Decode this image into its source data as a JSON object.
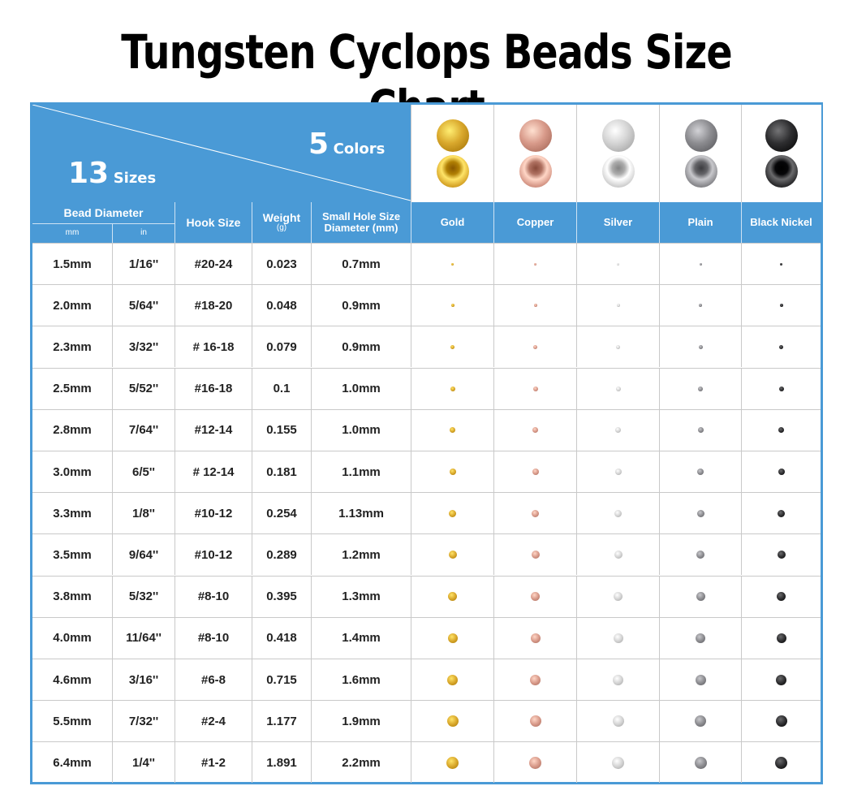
{
  "title": "Tungsten Cyclops Beads Size Chart",
  "corner": {
    "sizes_num": "13",
    "sizes_word": "Sizes",
    "colors_num": "5",
    "colors_word": "Colors"
  },
  "headers": {
    "bead_diameter": "Bead Diameter",
    "mm": "mm",
    "in": "in",
    "hook_size": "Hook Size",
    "weight": "Weight",
    "weight_unit": "(g)",
    "hole_line1": "Small Hole Size",
    "hole_line2": "Diameter (mm)"
  },
  "colors": [
    {
      "name": "Gold",
      "hex": "#d9a82c"
    },
    {
      "name": "Copper",
      "hex": "#d89a8a"
    },
    {
      "name": "Silver",
      "hex": "#d4d4d4"
    },
    {
      "name": "Plain",
      "hex": "#8c8c90"
    },
    {
      "name": "Black Nickel",
      "hex": "#2e2e30"
    }
  ],
  "rows": [
    {
      "mm": "1.5mm",
      "in": "1/16''",
      "hook": "#20-24",
      "weight": "0.023",
      "hole": "0.7mm"
    },
    {
      "mm": "2.0mm",
      "in": "5/64''",
      "hook": "#18-20",
      "weight": "0.048",
      "hole": "0.9mm"
    },
    {
      "mm": "2.3mm",
      "in": "3/32''",
      "hook": "# 16-18",
      "weight": "0.079",
      "hole": "0.9mm"
    },
    {
      "mm": "2.5mm",
      "in": "5/52''",
      "hook": "#16-18",
      "weight": "0.1",
      "hole": "1.0mm"
    },
    {
      "mm": "2.8mm",
      "in": "7/64''",
      "hook": "#12-14",
      "weight": "0.155",
      "hole": "1.0mm"
    },
    {
      "mm": "3.0mm",
      "in": "6/5''",
      "hook": "# 12-14",
      "weight": "0.181",
      "hole": "1.1mm"
    },
    {
      "mm": "3.3mm",
      "in": "1/8''",
      "hook": "#10-12",
      "weight": "0.254",
      "hole": "1.13mm"
    },
    {
      "mm": "3.5mm",
      "in": "9/64''",
      "hook": "#10-12",
      "weight": "0.289",
      "hole": "1.2mm"
    },
    {
      "mm": "3.8mm",
      "in": "5/32''",
      "hook": "#8-10",
      "weight": "0.395",
      "hole": "1.3mm"
    },
    {
      "mm": "4.0mm",
      "in": "11/64''",
      "hook": "#8-10",
      "weight": "0.418",
      "hole": "1.4mm"
    },
    {
      "mm": "4.6mm",
      "in": "3/16''",
      "hook": "#6-8",
      "weight": "0.715",
      "hole": "1.6mm"
    },
    {
      "mm": "5.5mm",
      "in": "7/32''",
      "hook": "#2-4",
      "weight": "1.177",
      "hole": "1.9mm"
    },
    {
      "mm": "6.4mm",
      "in": "1/4''",
      "hook": "#1-2",
      "weight": "1.891",
      "hole": "2.2mm"
    }
  ]
}
